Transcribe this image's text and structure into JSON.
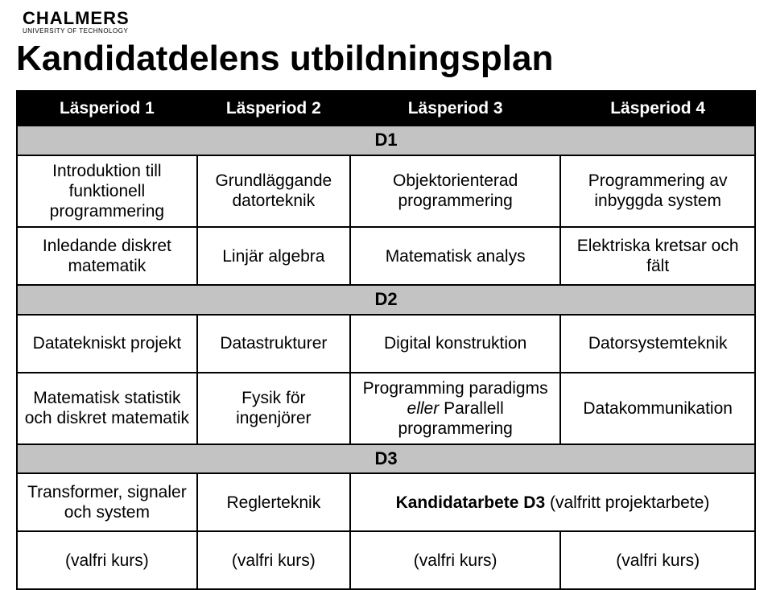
{
  "logo": {
    "main": "CHALMERS",
    "sub": "UNIVERSITY OF TECHNOLOGY"
  },
  "title": "Kandidatdelens utbildningsplan",
  "headers": [
    "Läsperiod 1",
    "Läsperiod 2",
    "Läsperiod 3",
    "Läsperiod 4"
  ],
  "years": {
    "d1": "D1",
    "d2": "D2",
    "d3": "D3"
  },
  "d1": {
    "r1": [
      "Introduktion till funktionell programmering",
      "Grundläggande datorteknik",
      "Objektorienterad programmering",
      "Programmering av inbyggda system"
    ],
    "r2": [
      "Inledande diskret matematik",
      "Linjär algebra",
      "Matematisk analys",
      "Elektriska kretsar och fält"
    ]
  },
  "d2": {
    "r1": [
      "Datatekniskt projekt",
      "Datastrukturer",
      "Digital konstruktion",
      "Datorsystemteknik"
    ],
    "r2c1": "Matematisk statistik och diskret matematik",
    "r2c2": "Fysik för ingenjörer",
    "r2c3_a": "Programming paradigms",
    "r2c3_b": "eller",
    "r2c3_c": "Parallell programmering",
    "r2c4": "Datakommunikation"
  },
  "d3": {
    "r1c1": "Transformer, signaler och system",
    "r1c2": "Reglerteknik",
    "r1c34_a": "Kandidatarbete D3",
    "r1c34_b": "(valfritt projektarbete)",
    "r2": [
      "(valfri kurs)",
      "(valfri kurs)",
      "(valfri kurs)",
      "(valfri kurs)"
    ]
  },
  "colors": {
    "header_bg": "#000000",
    "header_fg": "#ffffff",
    "year_bg": "#c3c3c3",
    "border": "#000000",
    "page_bg": "#ffffff",
    "text": "#000000"
  }
}
